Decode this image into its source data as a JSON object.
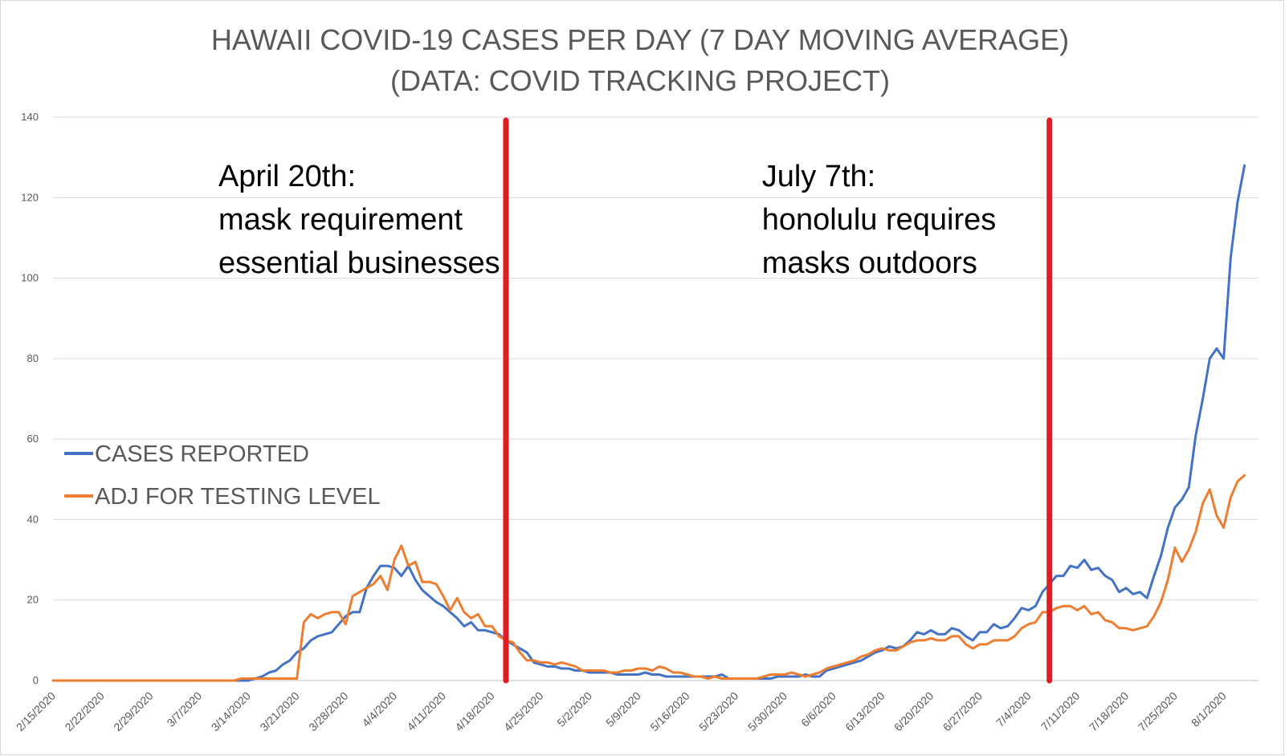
{
  "chart_data": {
    "type": "line",
    "title_lines": [
      "HAWAII COVID-19 CASES PER DAY (7 DAY MOVING AVERAGE)",
      "(DATA: COVID TRACKING PROJECT)"
    ],
    "xlabel": "",
    "ylabel": "",
    "ylim": [
      0,
      140
    ],
    "y_ticks": [
      0,
      20,
      40,
      60,
      80,
      100,
      120,
      140
    ],
    "x_start": "2/15/2020",
    "x_days": 173,
    "x_tick_labels": [
      "2/15/2020",
      "2/22/2020",
      "2/29/2020",
      "3/7/2020",
      "3/14/2020",
      "3/21/2020",
      "3/28/2020",
      "4/4/2020",
      "4/11/2020",
      "4/18/2020",
      "4/25/2020",
      "5/2/2020",
      "5/9/2020",
      "5/16/2020",
      "5/23/2020",
      "5/30/2020",
      "6/6/2020",
      "6/13/2020",
      "6/20/2020",
      "6/27/2020",
      "7/4/2020",
      "7/11/2020",
      "7/18/2020",
      "7/25/2020",
      "8/1/2020"
    ],
    "grid": true,
    "legend_position": "left",
    "series": [
      {
        "name": "CASES REPORTED",
        "color": "#4472c4",
        "points": [
          [
            0,
            0
          ],
          [
            28,
            0
          ],
          [
            29,
            0.5
          ],
          [
            30,
            1
          ],
          [
            31,
            2
          ],
          [
            32,
            2.5
          ],
          [
            33,
            4
          ],
          [
            34,
            5
          ],
          [
            35,
            7
          ],
          [
            36,
            8
          ],
          [
            37,
            10
          ],
          [
            38,
            11
          ],
          [
            39,
            11.5
          ],
          [
            40,
            12
          ],
          [
            41,
            14
          ],
          [
            42,
            16
          ],
          [
            43,
            17
          ],
          [
            44,
            17
          ],
          [
            45,
            23
          ],
          [
            46,
            26
          ],
          [
            47,
            28.5
          ],
          [
            48,
            28.5
          ],
          [
            49,
            28
          ],
          [
            50,
            26
          ],
          [
            51,
            28.5
          ],
          [
            52,
            25
          ],
          [
            53,
            22.5
          ],
          [
            54,
            21
          ],
          [
            55,
            19.5
          ],
          [
            56,
            18.5
          ],
          [
            57,
            17
          ],
          [
            58,
            15.5
          ],
          [
            59,
            13.5
          ],
          [
            60,
            14.5
          ],
          [
            61,
            12.5
          ],
          [
            62,
            12.5
          ],
          [
            63,
            12
          ],
          [
            64,
            11.5
          ],
          [
            65,
            10
          ],
          [
            66,
            9
          ],
          [
            67,
            8
          ],
          [
            68,
            7
          ],
          [
            69,
            4.5
          ],
          [
            70,
            4
          ],
          [
            71,
            3.5
          ],
          [
            72,
            3.5
          ],
          [
            73,
            3
          ],
          [
            74,
            3
          ],
          [
            75,
            2.5
          ],
          [
            76,
            2.5
          ],
          [
            77,
            2
          ],
          [
            78,
            2
          ],
          [
            79,
            2
          ],
          [
            80,
            2
          ],
          [
            81,
            1.5
          ],
          [
            82,
            1.5
          ],
          [
            83,
            1.5
          ],
          [
            84,
            1.5
          ],
          [
            85,
            2
          ],
          [
            86,
            1.5
          ],
          [
            87,
            1.5
          ],
          [
            88,
            1
          ],
          [
            89,
            1
          ],
          [
            90,
            1
          ],
          [
            91,
            1
          ],
          [
            92,
            1
          ],
          [
            93,
            1
          ],
          [
            94,
            1
          ],
          [
            95,
            1
          ],
          [
            96,
            1.5
          ],
          [
            97,
            0.5
          ],
          [
            98,
            0.5
          ],
          [
            99,
            0.5
          ],
          [
            100,
            0.5
          ],
          [
            101,
            0.5
          ],
          [
            102,
            0.5
          ],
          [
            103,
            0.5
          ],
          [
            104,
            1
          ],
          [
            105,
            1
          ],
          [
            106,
            1
          ],
          [
            107,
            1
          ],
          [
            108,
            1.5
          ],
          [
            109,
            1
          ],
          [
            110,
            1
          ],
          [
            111,
            2.5
          ],
          [
            112,
            3
          ],
          [
            113,
            3.5
          ],
          [
            114,
            4
          ],
          [
            115,
            4.5
          ],
          [
            116,
            5
          ],
          [
            117,
            6
          ],
          [
            118,
            7
          ],
          [
            119,
            7.5
          ],
          [
            120,
            8.5
          ],
          [
            121,
            8
          ],
          [
            122,
            8.5
          ],
          [
            123,
            10
          ],
          [
            124,
            12
          ],
          [
            125,
            11.5
          ],
          [
            126,
            12.5
          ],
          [
            127,
            11.5
          ],
          [
            128,
            11.5
          ],
          [
            129,
            13
          ],
          [
            130,
            12.5
          ],
          [
            131,
            11
          ],
          [
            132,
            10
          ],
          [
            133,
            12
          ],
          [
            134,
            12
          ],
          [
            135,
            14
          ],
          [
            136,
            13
          ],
          [
            137,
            13.5
          ],
          [
            138,
            15.5
          ],
          [
            139,
            18
          ],
          [
            140,
            17.5
          ],
          [
            141,
            18.5
          ],
          [
            142,
            22
          ],
          [
            143,
            24
          ],
          [
            144,
            26
          ],
          [
            145,
            26
          ],
          [
            146,
            28.5
          ],
          [
            147,
            28
          ],
          [
            148,
            30
          ],
          [
            149,
            27.5
          ],
          [
            150,
            28
          ],
          [
            151,
            26
          ],
          [
            152,
            25
          ],
          [
            153,
            22
          ],
          [
            154,
            23
          ],
          [
            155,
            21.5
          ],
          [
            156,
            22
          ],
          [
            157,
            20.5
          ],
          [
            158,
            26
          ],
          [
            159,
            31
          ],
          [
            160,
            38
          ],
          [
            161,
            43
          ],
          [
            162,
            45
          ],
          [
            163,
            48
          ],
          [
            164,
            61
          ],
          [
            165,
            70
          ],
          [
            166,
            80
          ],
          [
            167,
            82.5
          ],
          [
            168,
            80
          ],
          [
            169,
            105
          ],
          [
            170,
            119
          ],
          [
            171,
            128
          ]
        ]
      },
      {
        "name": "ADJ FOR TESTING LEVEL",
        "color": "#ed7d31",
        "points": [
          [
            0,
            0
          ],
          [
            26,
            0
          ],
          [
            27,
            0.5
          ],
          [
            35,
            0.5
          ],
          [
            36,
            14.5
          ],
          [
            37,
            16.5
          ],
          [
            38,
            15.5
          ],
          [
            39,
            16.5
          ],
          [
            40,
            17
          ],
          [
            41,
            17
          ],
          [
            42,
            14
          ],
          [
            43,
            21
          ],
          [
            44,
            22
          ],
          [
            45,
            23
          ],
          [
            46,
            24
          ],
          [
            47,
            26
          ],
          [
            48,
            22.5
          ],
          [
            49,
            30
          ],
          [
            50,
            33.5
          ],
          [
            51,
            28.5
          ],
          [
            52,
            29.5
          ],
          [
            53,
            24.5
          ],
          [
            54,
            24.5
          ],
          [
            55,
            24
          ],
          [
            56,
            21
          ],
          [
            57,
            17.5
          ],
          [
            58,
            20.5
          ],
          [
            59,
            17
          ],
          [
            60,
            15.5
          ],
          [
            61,
            16.5
          ],
          [
            62,
            13.5
          ],
          [
            63,
            13.5
          ],
          [
            64,
            11
          ],
          [
            65,
            10
          ],
          [
            66,
            9.5
          ],
          [
            67,
            7
          ],
          [
            68,
            5
          ],
          [
            69,
            5
          ],
          [
            70,
            4.5
          ],
          [
            71,
            4.5
          ],
          [
            72,
            4
          ],
          [
            73,
            4.5
          ],
          [
            74,
            4
          ],
          [
            75,
            3.5
          ],
          [
            76,
            2.5
          ],
          [
            77,
            2.5
          ],
          [
            78,
            2.5
          ],
          [
            79,
            2.5
          ],
          [
            80,
            2
          ],
          [
            81,
            2
          ],
          [
            82,
            2.5
          ],
          [
            83,
            2.5
          ],
          [
            84,
            3
          ],
          [
            85,
            3
          ],
          [
            86,
            2.5
          ],
          [
            87,
            3.5
          ],
          [
            88,
            3
          ],
          [
            89,
            2
          ],
          [
            90,
            2
          ],
          [
            91,
            1.5
          ],
          [
            92,
            1
          ],
          [
            93,
            1
          ],
          [
            94,
            0.5
          ],
          [
            95,
            1
          ],
          [
            96,
            0.5
          ],
          [
            97,
            0.5
          ],
          [
            98,
            0.5
          ],
          [
            99,
            0.5
          ],
          [
            100,
            0.5
          ],
          [
            101,
            0.5
          ],
          [
            102,
            1
          ],
          [
            103,
            1.5
          ],
          [
            104,
            1.5
          ],
          [
            105,
            1.5
          ],
          [
            106,
            2
          ],
          [
            107,
            1.5
          ],
          [
            108,
            1
          ],
          [
            109,
            1.5
          ],
          [
            110,
            2
          ],
          [
            111,
            3
          ],
          [
            112,
            3.5
          ],
          [
            113,
            4
          ],
          [
            114,
            4.5
          ],
          [
            115,
            5
          ],
          [
            116,
            6
          ],
          [
            117,
            6.5
          ],
          [
            118,
            7.5
          ],
          [
            119,
            8
          ],
          [
            120,
            7.5
          ],
          [
            121,
            7.5
          ],
          [
            122,
            8.5
          ],
          [
            123,
            9.5
          ],
          [
            124,
            10
          ],
          [
            125,
            10
          ],
          [
            126,
            10.5
          ],
          [
            127,
            10
          ],
          [
            128,
            10
          ],
          [
            129,
            11
          ],
          [
            130,
            11
          ],
          [
            131,
            9
          ],
          [
            132,
            8
          ],
          [
            133,
            9
          ],
          [
            134,
            9
          ],
          [
            135,
            10
          ],
          [
            136,
            10
          ],
          [
            137,
            10
          ],
          [
            138,
            11
          ],
          [
            139,
            13
          ],
          [
            140,
            14
          ],
          [
            141,
            14.5
          ],
          [
            142,
            17
          ],
          [
            143,
            17
          ],
          [
            144,
            18
          ],
          [
            145,
            18.5
          ],
          [
            146,
            18.5
          ],
          [
            147,
            17.5
          ],
          [
            148,
            18.5
          ],
          [
            149,
            16.5
          ],
          [
            150,
            17
          ],
          [
            151,
            15
          ],
          [
            152,
            14.5
          ],
          [
            153,
            13
          ],
          [
            154,
            13
          ],
          [
            155,
            12.5
          ],
          [
            156,
            13
          ],
          [
            157,
            13.5
          ],
          [
            158,
            16
          ],
          [
            159,
            19.5
          ],
          [
            160,
            25
          ],
          [
            161,
            33
          ],
          [
            162,
            29.5
          ],
          [
            163,
            32.5
          ],
          [
            164,
            37
          ],
          [
            165,
            44
          ],
          [
            166,
            47.5
          ],
          [
            167,
            41
          ],
          [
            168,
            38
          ],
          [
            169,
            45.5
          ],
          [
            170,
            49.5
          ],
          [
            171,
            51
          ]
        ]
      }
    ],
    "reference_lines": [
      {
        "day": 65,
        "label_lines": [
          "April 20th:",
          "mask requirement",
          "essential businesses"
        ],
        "color": "#e31b23"
      },
      {
        "day": 143,
        "label_lines": [
          "July 7th:",
          "honolulu requires",
          "masks outdoors"
        ],
        "color": "#e31b23"
      }
    ]
  }
}
